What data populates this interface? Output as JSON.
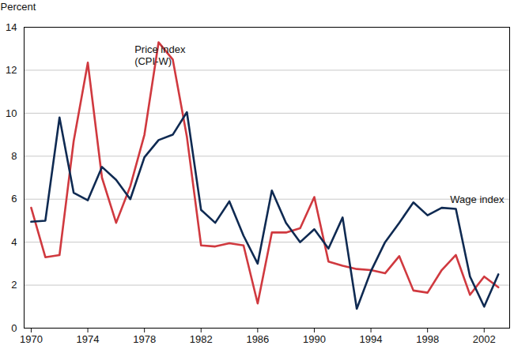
{
  "chart_data": {
    "type": "line",
    "y_label": "Percent",
    "x": [
      1970,
      1971,
      1972,
      1973,
      1974,
      1975,
      1976,
      1977,
      1978,
      1979,
      1980,
      1981,
      1982,
      1983,
      1984,
      1985,
      1986,
      1987,
      1988,
      1989,
      1990,
      1991,
      1992,
      1993,
      1994,
      1995,
      1996,
      1997,
      1998,
      1999,
      2000,
      2001,
      2002,
      2003
    ],
    "series": [
      {
        "name": "Price index (CPI-W)",
        "color": "#d0393f",
        "values": [
          5.6,
          3.3,
          3.4,
          8.7,
          12.35,
          7.0,
          4.9,
          6.6,
          9.0,
          13.3,
          12.5,
          8.9,
          3.85,
          3.8,
          3.95,
          3.85,
          1.15,
          4.45,
          4.45,
          4.65,
          6.1,
          3.1,
          2.9,
          2.75,
          2.7,
          2.55,
          3.35,
          1.75,
          1.65,
          2.7,
          3.4,
          1.55,
          2.4,
          1.9
        ]
      },
      {
        "name": "Wage index",
        "color": "#0f2a52",
        "values": [
          4.95,
          5.0,
          9.8,
          6.3,
          5.95,
          7.5,
          6.9,
          6.0,
          7.95,
          8.75,
          9.0,
          10.05,
          5.5,
          4.9,
          5.9,
          4.3,
          3.0,
          6.4,
          4.9,
          4.0,
          4.6,
          3.7,
          5.15,
          0.9,
          2.65,
          4.0,
          4.9,
          5.85,
          5.25,
          5.6,
          5.55,
          2.4,
          1.0,
          2.5
        ]
      }
    ],
    "annotations": [
      {
        "text": "Price index\n(CPI-W)",
        "x": 1977.3,
        "y": 12.7
      },
      {
        "text": "Wage index",
        "x": 1999.6,
        "y": 6.0
      }
    ],
    "xlim": [
      1969.5,
      2003.8
    ],
    "xticks": [
      1970,
      1974,
      1978,
      1982,
      1986,
      1990,
      1994,
      1998,
      2002
    ],
    "ylim": [
      0,
      14
    ],
    "yticks": [
      0,
      2,
      4,
      6,
      8,
      10,
      12,
      14
    ],
    "grid": true
  }
}
